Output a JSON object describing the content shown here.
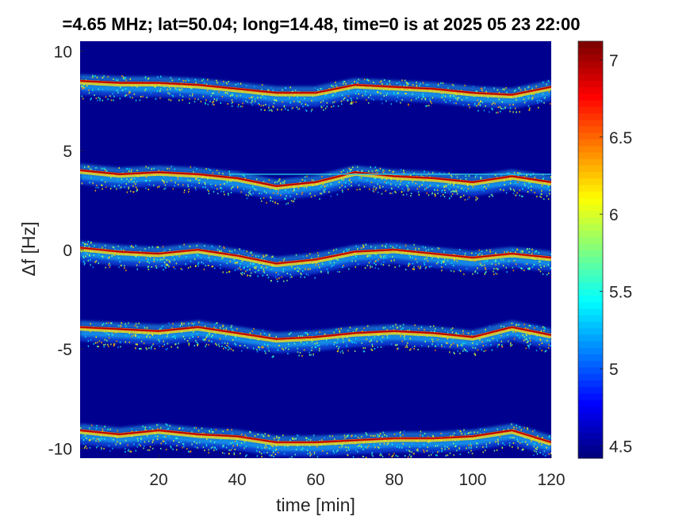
{
  "chart_data": {
    "type": "heatmap",
    "title": "=4.65 MHz;  lat=50.04; long=14.48, time=0 is at 2025 05 23 22:00",
    "xlabel": "time [min]",
    "ylabel": "Δf [Hz]",
    "xlim": [
      0,
      120
    ],
    "ylim": [
      -10.5,
      10.5
    ],
    "x_ticks": [
      20,
      40,
      60,
      80,
      100,
      120
    ],
    "y_ticks": [
      -10,
      -5,
      0,
      5,
      10
    ],
    "colorbar": {
      "range": [
        4.42,
        7.12
      ],
      "ticks": [
        4.5,
        5,
        5.5,
        6,
        6.5,
        7
      ],
      "colormap": "jet"
    },
    "background_color": "#00008f",
    "series": [
      {
        "base_hz": 8,
        "x": [
          0,
          10,
          20,
          30,
          40,
          50,
          60,
          70,
          80,
          90,
          100,
          110,
          120
        ],
        "y": [
          8.5,
          8.4,
          8.4,
          8.3,
          8.1,
          7.9,
          7.9,
          8.3,
          8.2,
          8.1,
          7.9,
          7.8,
          8.2
        ]
      },
      {
        "base_hz": 4,
        "x": [
          0,
          10,
          20,
          30,
          40,
          50,
          60,
          70,
          80,
          90,
          100,
          110,
          120
        ],
        "y": [
          4.0,
          3.8,
          3.9,
          3.8,
          3.6,
          3.2,
          3.4,
          3.9,
          3.7,
          3.6,
          3.4,
          3.7,
          3.4
        ]
      },
      {
        "base_hz": 0,
        "x": [
          0,
          10,
          20,
          30,
          40,
          50,
          60,
          70,
          80,
          90,
          100,
          110,
          120
        ],
        "y": [
          0.1,
          -0.1,
          -0.2,
          0.0,
          -0.3,
          -0.7,
          -0.5,
          -0.1,
          0.0,
          -0.2,
          -0.4,
          -0.2,
          -0.4
        ]
      },
      {
        "base_hz": -4,
        "x": [
          0,
          10,
          20,
          30,
          40,
          50,
          60,
          70,
          80,
          90,
          100,
          110,
          120
        ],
        "y": [
          -3.9,
          -4.0,
          -4.1,
          -3.9,
          -4.2,
          -4.5,
          -4.4,
          -4.2,
          -4.1,
          -4.2,
          -4.4,
          -3.9,
          -4.3
        ]
      },
      {
        "base_hz": -9,
        "x": [
          0,
          10,
          20,
          30,
          40,
          50,
          60,
          70,
          80,
          90,
          100,
          110,
          120
        ],
        "y": [
          -9.1,
          -9.3,
          -9.1,
          -9.3,
          -9.4,
          -9.7,
          -9.7,
          -9.6,
          -9.5,
          -9.5,
          -9.4,
          -9.1,
          -9.7
        ]
      }
    ],
    "annotations": [
      {
        "type": "horizontal-line",
        "y": 3.8,
        "x_from": 38,
        "x_to": 120,
        "color": "#27c8e8"
      }
    ]
  }
}
